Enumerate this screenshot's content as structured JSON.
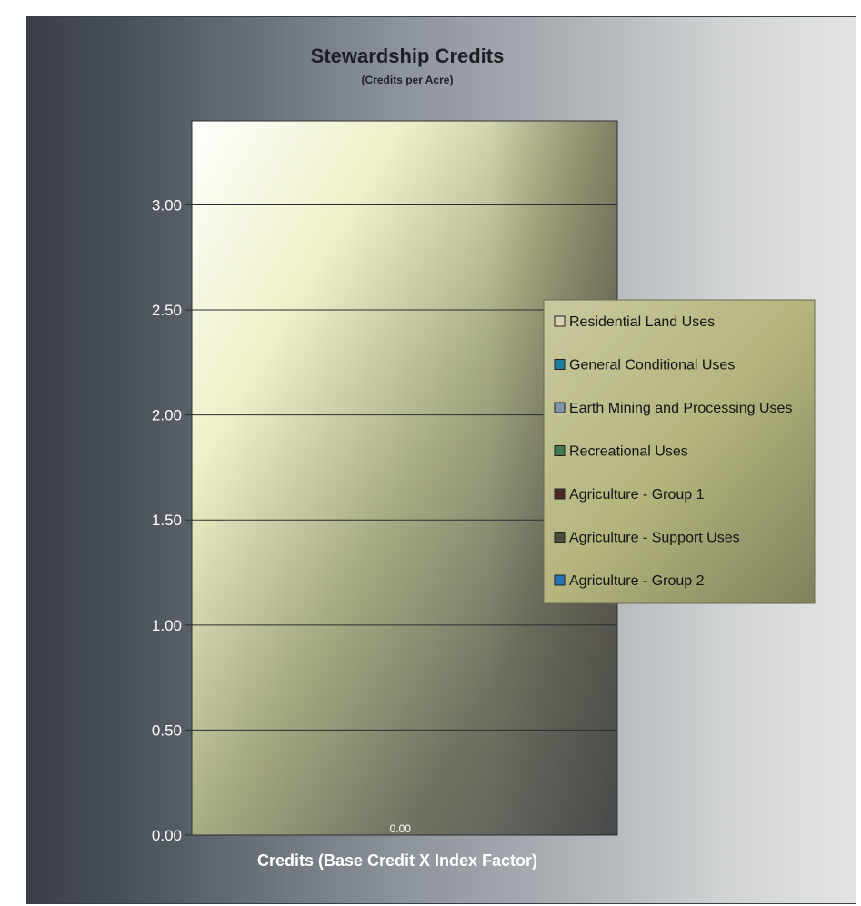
{
  "chart_data": {
    "type": "bar",
    "title": "Stewardship Credits",
    "subtitle": "(Credits per Acre)",
    "xlabel": "Credits (Base Credit X Index Factor)",
    "ylabel": "",
    "ylim": [
      0,
      3.4
    ],
    "yticks": [
      "0.00",
      "0.50",
      "1.00",
      "1.50",
      "2.00",
      "2.50",
      "3.00"
    ],
    "categories": [
      "Credits (Base Credit X Index Factor)"
    ],
    "series": [
      {
        "name": "Residential Land Uses",
        "values": [
          0.0
        ],
        "color": "#d9d2b4"
      },
      {
        "name": "General Conditional Uses",
        "values": [
          0.0
        ],
        "color": "#1f7fa3"
      },
      {
        "name": "Earth Mining and Processing Uses",
        "values": [
          0.0
        ],
        "color": "#7e96ad"
      },
      {
        "name": "Recreational Uses",
        "values": [
          0.0
        ],
        "color": "#3f7a4f"
      },
      {
        "name": "Agriculture - Group 1",
        "values": [
          0.0
        ],
        "color": "#4a2a28"
      },
      {
        "name": "Agriculture - Support Uses",
        "values": [
          0.0
        ],
        "color": "#4a4e3a"
      },
      {
        "name": "Agriculture - Group 2",
        "values": [
          0.0
        ],
        "color": "#2a6fb5"
      }
    ],
    "data_labels": [
      "0.00"
    ],
    "grid": true,
    "legend_position": "right"
  }
}
